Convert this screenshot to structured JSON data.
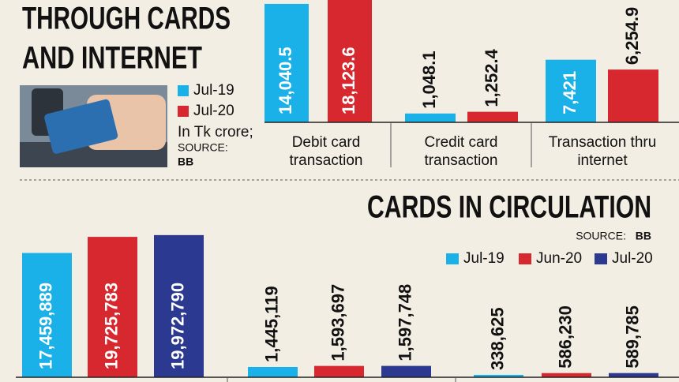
{
  "chart_data": [
    {
      "type": "bar",
      "title_lines": [
        "THROUGH CARDS",
        "AND INTERNET"
      ],
      "note": "In Tk crore;",
      "source_label": "SOURCE:",
      "source": "BB",
      "categories": [
        "Debit card transaction",
        "Credit card transaction",
        "Transaction thru internet"
      ],
      "series": [
        {
          "name": "Jul-19",
          "color": "#1ab0e8",
          "values": [
            14040.5,
            1048.1,
            7421
          ],
          "value_labels": [
            "14,040.5",
            "1,048.1",
            "7,421"
          ]
        },
        {
          "name": "Jul-20",
          "color": "#d7282f",
          "values": [
            18123.6,
            1252.4,
            6254.9
          ],
          "value_labels": [
            "18,123.6",
            "1,252.4",
            "6,254.9"
          ]
        }
      ],
      "ylim": [
        0,
        14500
      ]
    },
    {
      "type": "bar",
      "title": "CARDS IN CIRCULATION",
      "source_label": "SOURCE:",
      "source": "BB",
      "categories": [
        null,
        null,
        null
      ],
      "series": [
        {
          "name": "Jul-19",
          "color": "#1ab0e8",
          "values": [
            17459889,
            1445119,
            338625
          ],
          "value_labels": [
            "17,459,889",
            "1,445,119",
            "338,625"
          ]
        },
        {
          "name": "Jun-20",
          "color": "#d7282f",
          "values": [
            19725783,
            1593697,
            586230
          ],
          "value_labels": [
            "19,725,783",
            "1,593,697",
            "586,230"
          ]
        },
        {
          "name": "Jul-20",
          "color": "#2b3990",
          "values": [
            19972790,
            1597748,
            589785
          ],
          "value_labels": [
            "19,972,790",
            "1,597,748",
            "589,785"
          ]
        }
      ],
      "ylim": [
        0,
        53000000
      ]
    }
  ]
}
